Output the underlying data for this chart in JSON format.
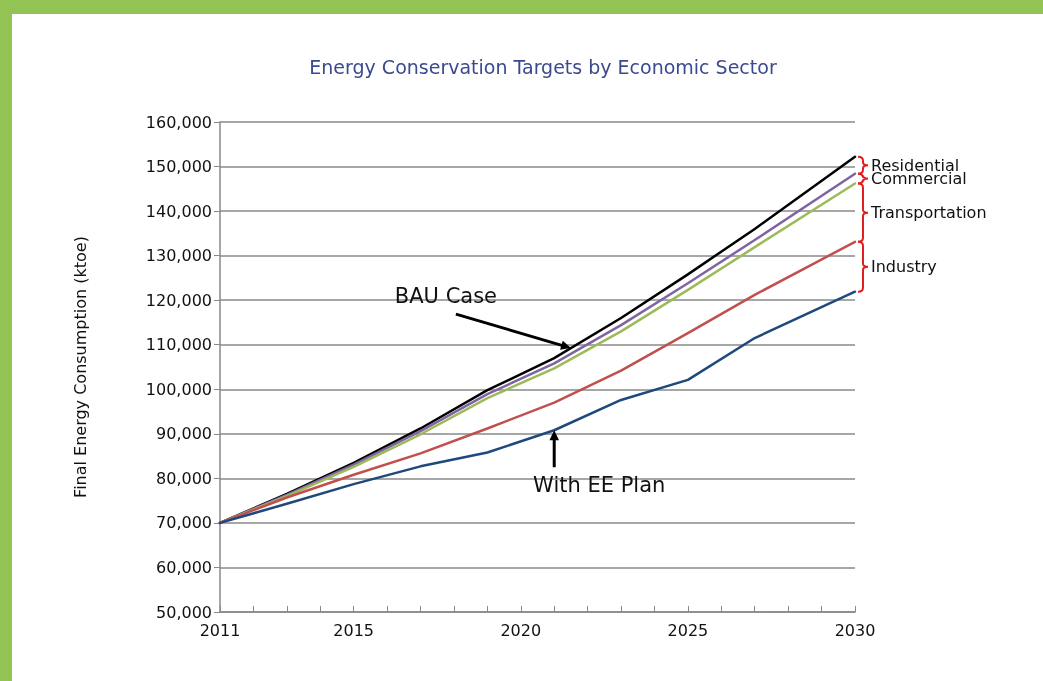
{
  "chart_data": {
    "type": "line",
    "title": "Energy Conservation Targets by Economic Sector",
    "ylabel": "Final Energy Consumption (ktoe)",
    "x": [
      2011,
      2013,
      2015,
      2017,
      2019,
      2021,
      2023,
      2025,
      2027,
      2030
    ],
    "series": [
      {
        "color": "#000000",
        "values": [
          70000,
          76500,
          83500,
          91200,
          99800,
          107000,
          116000,
          125800,
          136000,
          152200
        ]
      },
      {
        "color": "#8064a2",
        "values": [
          70000,
          76300,
          83100,
          90600,
          98900,
          105800,
          114400,
          123800,
          133500,
          148400
        ]
      },
      {
        "color": "#9bbb59",
        "values": [
          70000,
          76000,
          82600,
          89900,
          98000,
          104700,
          113000,
          122300,
          131900,
          146200
        ]
      },
      {
        "color": "#c0504d",
        "values": [
          70000,
          75700,
          80800,
          85600,
          91200,
          97000,
          104200,
          112600,
          121200,
          133100
        ]
      },
      {
        "color": "#1f497d",
        "values": [
          70000,
          74300,
          78700,
          82700,
          85800,
          90800,
          97600,
          102100,
          111500,
          121900
        ]
      }
    ],
    "xlim": [
      2011,
      2030
    ],
    "xticks": [
      2011,
      {
        "value": 2012,
        "label": null
      },
      {
        "value": 2013,
        "label": null
      },
      {
        "value": 2014,
        "label": null
      },
      2015,
      {
        "value": 2016,
        "label": null
      },
      {
        "value": 2017,
        "label": null
      },
      {
        "value": 2018,
        "label": null
      },
      {
        "value": 2019,
        "label": null
      },
      2020,
      {
        "value": 2021,
        "label": null
      },
      {
        "value": 2022,
        "label": null
      },
      {
        "value": 2023,
        "label": null
      },
      {
        "value": 2024,
        "label": null
      },
      2025,
      {
        "value": 2026,
        "label": null
      },
      {
        "value": 2027,
        "label": null
      },
      {
        "value": 2028,
        "label": null
      },
      {
        "value": 2029,
        "label": null
      },
      2030
    ],
    "ylim": [
      50000,
      160000
    ],
    "yticks": [
      {
        "value": 50000,
        "label": "50,000"
      },
      {
        "value": 60000,
        "label": "60,000"
      },
      {
        "value": 70000,
        "label": "70,000"
      },
      {
        "value": 80000,
        "label": "80,000"
      },
      {
        "value": 90000,
        "label": "90,000"
      },
      {
        "value": 100000,
        "label": "100,000"
      },
      {
        "value": 110000,
        "label": "110,000"
      },
      {
        "value": 120000,
        "label": "120,000"
      },
      {
        "value": 130000,
        "label": "130,000"
      },
      {
        "value": 140000,
        "label": "140,000"
      },
      {
        "value": 150000,
        "label": "150,000"
      },
      {
        "value": 160000,
        "label": "160,000"
      }
    ],
    "grid": "y",
    "marker": "none",
    "line_style": "solid",
    "annotations": [
      {
        "text": "BAU Case",
        "x": 2021.5,
        "y": 109250
      },
      {
        "text": "With EE Plan",
        "x": 2021,
        "y": 90800
      },
      "Residential",
      "Commercial",
      "Transportation",
      "Industry"
    ]
  }
}
